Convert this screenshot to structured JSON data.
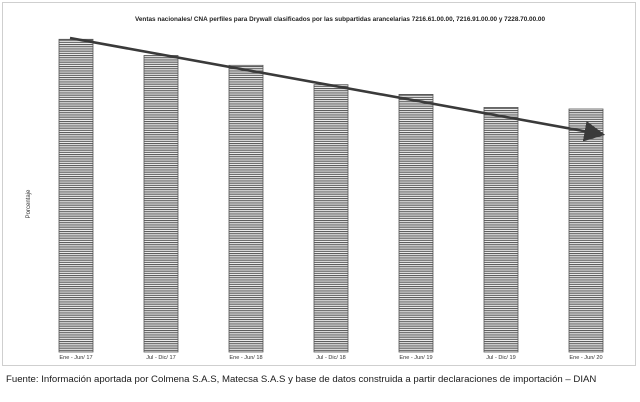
{
  "chart_data": {
    "type": "bar",
    "title": "Ventas nacionales/ CNA perfiles para Drywall clasificados por las subpartidas arancelarias 7216.61.00.00, 7216.91.00.00 y 7228.70.00.00",
    "ylabel": "Porcentaje",
    "xlabel": "",
    "categories": [
      "Ene - Jun/ 17",
      "Jul - Dic/ 17",
      "Ene - Jun/ 18",
      "Jul - Dic/ 18",
      "Ene - Jun/ 19",
      "Jul - Dic/ 19",
      "Ene - Jun/ 20"
    ],
    "values": [
      96.5,
      91.5,
      88.5,
      82.5,
      79.5,
      75.5,
      75
    ],
    "ylim": [
      0,
      100
    ],
    "grid": false,
    "legend": "none",
    "annotations": [
      "downward trend arrow"
    ],
    "bar_style": "horizontal hatching",
    "bar_color": "#555555",
    "arrow_color": "#3a3a3a"
  },
  "source_note": "Fuente: Información aportada por Colmena S.A.S, Matecsa S.A.S y base de datos construida a partir declaraciones de importación – DIAN"
}
